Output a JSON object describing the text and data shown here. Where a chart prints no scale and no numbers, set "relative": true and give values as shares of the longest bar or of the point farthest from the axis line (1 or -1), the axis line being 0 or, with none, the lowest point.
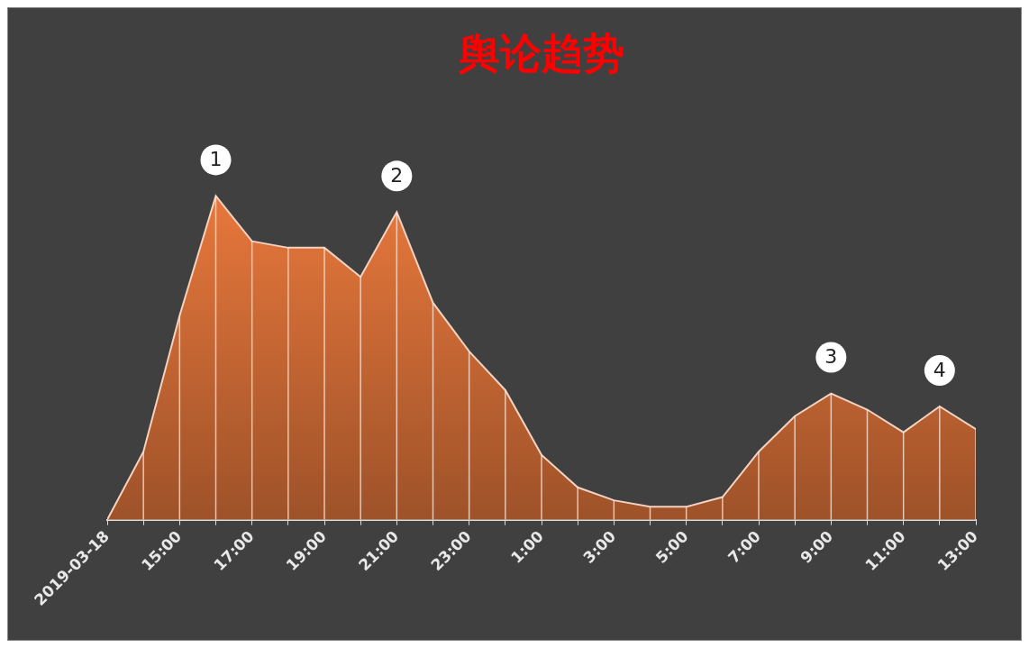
{
  "chart_data": {
    "type": "area",
    "title": "舆论趋势",
    "relative": true,
    "x": [
      "2019-03-18T13:00",
      "2019-03-18T14:00",
      "2019-03-18T15:00",
      "2019-03-18T16:00",
      "2019-03-18T17:00",
      "2019-03-18T18:00",
      "2019-03-18T19:00",
      "2019-03-18T20:00",
      "2019-03-18T21:00",
      "2019-03-18T22:00",
      "2019-03-18T23:00",
      "2019-03-19T00:00",
      "2019-03-19T01:00",
      "2019-03-19T02:00",
      "2019-03-19T03:00",
      "2019-03-19T04:00",
      "2019-03-19T05:00",
      "2019-03-19T06:00",
      "2019-03-19T07:00",
      "2019-03-19T08:00",
      "2019-03-19T09:00",
      "2019-03-19T10:00",
      "2019-03-19T11:00",
      "2019-03-19T12:00",
      "2019-03-19T13:00"
    ],
    "xlim": [
      "2019-03-18T13:00",
      "2019-03-19T13:00"
    ],
    "xticks": [
      {
        "value": "2019-03-18T13:00",
        "label": "2019-03-18"
      },
      {
        "value": "2019-03-18T14:00",
        "label": null
      },
      {
        "value": "2019-03-18T15:00",
        "label": "15:00"
      },
      {
        "value": "2019-03-18T16:00",
        "label": null
      },
      {
        "value": "2019-03-18T17:00",
        "label": "17:00"
      },
      {
        "value": "2019-03-18T18:00",
        "label": null
      },
      {
        "value": "2019-03-18T19:00",
        "label": "19:00"
      },
      {
        "value": "2019-03-18T20:00",
        "label": null
      },
      {
        "value": "2019-03-18T21:00",
        "label": "21:00"
      },
      {
        "value": "2019-03-18T22:00",
        "label": null
      },
      {
        "value": "2019-03-18T23:00",
        "label": "23:00"
      },
      {
        "value": "2019-03-19T00:00",
        "label": null
      },
      {
        "value": "2019-03-19T01:00",
        "label": "1:00"
      },
      {
        "value": "2019-03-19T02:00",
        "label": null
      },
      {
        "value": "2019-03-19T03:00",
        "label": "3:00"
      },
      {
        "value": "2019-03-19T04:00",
        "label": null
      },
      {
        "value": "2019-03-19T05:00",
        "label": "5:00"
      },
      {
        "value": "2019-03-19T06:00",
        "label": null
      },
      {
        "value": "2019-03-19T07:00",
        "label": "7:00"
      },
      {
        "value": "2019-03-19T08:00",
        "label": null
      },
      {
        "value": "2019-03-19T09:00",
        "label": "9:00"
      },
      {
        "value": "2019-03-19T10:00",
        "label": null
      },
      {
        "value": "2019-03-19T11:00",
        "label": "11:00"
      },
      {
        "value": "2019-03-19T12:00",
        "label": null
      },
      {
        "value": "2019-03-19T13:00",
        "label": "13:00"
      }
    ],
    "series": [
      {
        "color": "#e8783c",
        "values": [
          0,
          0.21,
          0.63,
          1,
          0.86,
          0.84,
          0.84,
          0.75,
          0.95,
          0.67,
          0.52,
          0.4,
          0.2,
          0.1,
          0.06,
          0.04,
          0.04,
          0.07,
          0.21,
          0.32,
          0.39,
          0.34,
          0.27,
          0.35,
          0.28
        ]
      }
    ],
    "annotations": [
      {
        "text": "1",
        "x": "2019-03-18T16:00",
        "y": 1
      },
      {
        "text": "2",
        "x": "2019-03-18T21:00",
        "y": 0.95
      },
      {
        "text": "3",
        "x": "2019-03-19T09:00",
        "y": 0.39
      },
      {
        "text": "4",
        "x": "2019-03-19T12:00",
        "y": 0.35
      }
    ],
    "grid": "x",
    "legend": false
  }
}
